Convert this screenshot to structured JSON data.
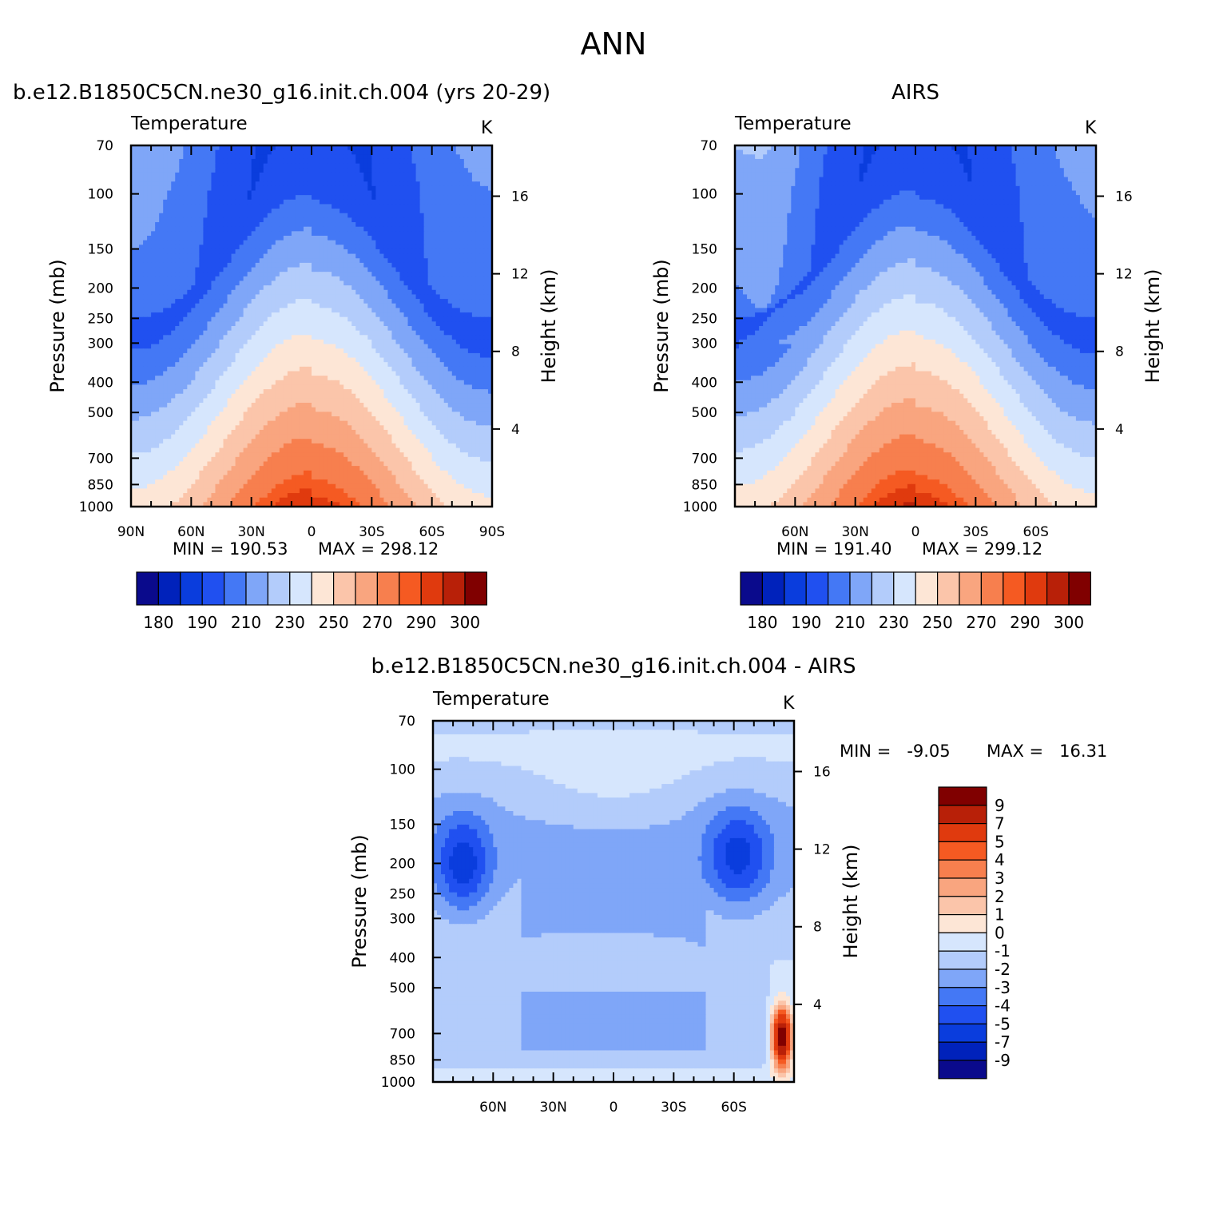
{
  "figure": {
    "title": "ANN"
  },
  "colors": {
    "abs_levels": [
      "#0a0a8c",
      "#0022bb",
      "#0a3ddd",
      "#2050f0",
      "#4478f5",
      "#7fa6f8",
      "#b3ccfb",
      "#d6e6fd",
      "#fde6d6",
      "#fbc5aa",
      "#f9a57f",
      "#f77f4e",
      "#f55a22",
      "#e03a0e",
      "#b82008",
      "#800000"
    ],
    "diff_levels": [
      "#0a0a8c",
      "#0022bb",
      "#0a3ddd",
      "#2050f0",
      "#4478f5",
      "#7fa6f8",
      "#b3ccfb",
      "#d6e6fd",
      "#fde6d6",
      "#fbc5aa",
      "#f9a57f",
      "#f77f4e",
      "#f55a22",
      "#e03a0e",
      "#b82008",
      "#800000"
    ]
  },
  "chart_data": [
    {
      "type": "heatmap",
      "title": "b.e12.B1850C5CN.ne30_g16.init.ch.004 (yrs 20-29)",
      "subtitle": "Temperature",
      "units": "K",
      "ylabel": "Pressure (mb)",
      "ylabel_right": "Height (km)",
      "x_ticks": [
        "90N",
        "60N",
        "30N",
        "0",
        "30S",
        "60S",
        "90S"
      ],
      "y_ticks": [
        70,
        100,
        150,
        200,
        250,
        300,
        400,
        500,
        700,
        850,
        1000
      ],
      "y_ticks_right": [
        16,
        12,
        8,
        4
      ],
      "min_label": "MIN = 190.53",
      "max_label": "MAX = 298.12",
      "colorbar_ticks": [
        "180",
        "190",
        "210",
        "230",
        "250",
        "270",
        "290",
        "300"
      ],
      "field": {
        "kind": "model",
        "xlim": [
          "90N",
          "90S"
        ],
        "ylim": [
          1000,
          70
        ],
        "min": 190.53,
        "max": 298.12
      }
    },
    {
      "type": "heatmap",
      "title": "AIRS",
      "subtitle": "Temperature",
      "units": "K",
      "ylabel": "Pressure (mb)",
      "ylabel_right": "Height (km)",
      "x_ticks": [
        "60N",
        "30N",
        "0",
        "30S",
        "60S"
      ],
      "y_ticks": [
        70,
        100,
        150,
        200,
        250,
        300,
        400,
        500,
        700,
        850,
        1000
      ],
      "y_ticks_right": [
        16,
        12,
        8,
        4
      ],
      "min_label": "MIN = 191.40",
      "max_label": "MAX = 299.12",
      "colorbar_ticks": [
        "180",
        "190",
        "210",
        "230",
        "250",
        "270",
        "290",
        "300"
      ],
      "field": {
        "kind": "obs",
        "xlim": [
          "90N",
          "90S"
        ],
        "ylim": [
          1000,
          70
        ],
        "min": 191.4,
        "max": 299.12
      }
    },
    {
      "type": "heatmap",
      "title": "b.e12.B1850C5CN.ne30_g16.init.ch.004 - AIRS",
      "subtitle": "Temperature",
      "units": "K",
      "ylabel": "Pressure (mb)",
      "ylabel_right": "Height (km)",
      "x_ticks": [
        "60N",
        "30N",
        "0",
        "30S",
        "60S"
      ],
      "y_ticks": [
        70,
        100,
        150,
        200,
        250,
        300,
        400,
        500,
        700,
        850,
        1000
      ],
      "y_ticks_right": [
        16,
        12,
        8,
        4
      ],
      "min_label": "MIN =   -9.05",
      "max_label": "MAX =   16.31",
      "colorbar_ticks": [
        "9",
        "7",
        "5",
        "4",
        "3",
        "2",
        "1",
        "0",
        "-1",
        "-2",
        "-3",
        "-4",
        "-5",
        "-7",
        "-9"
      ],
      "field": {
        "kind": "diff",
        "xlim": [
          "90N",
          "90S"
        ],
        "ylim": [
          1000,
          70
        ],
        "min": -9.05,
        "max": 16.31
      }
    }
  ]
}
